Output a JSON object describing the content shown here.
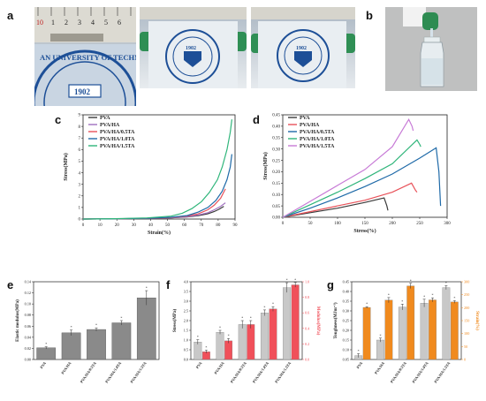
{
  "panels": {
    "a": "a",
    "b": "b",
    "c": "c",
    "d": "d",
    "e": "e",
    "f": "f",
    "g": "g"
  },
  "photos": {
    "a1": {
      "ruler_numbers": [
        "10",
        "1",
        "2",
        "3",
        "4",
        "5",
        "6"
      ],
      "seal_text": "AN UNIVERSITY OF TECHNO",
      "seal_year": "1902"
    },
    "a2": {
      "seal_text": "TIANJIN UNIVERSITY OF TECHNOLOGY",
      "seal_year": "1902"
    },
    "a3": {
      "seal_text": "TIANJIN UNIVERSITY OF TECHNOLOGY",
      "seal_year": "1902"
    },
    "b": {
      "description_icon": "hydrogel-bottle-icon"
    }
  },
  "chart_data": [
    {
      "id": "c",
      "type": "line",
      "xlabel": "Strain(%)",
      "ylabel": "Stress(MPa)",
      "xlim": [
        0,
        95
      ],
      "ylim": [
        0,
        9
      ],
      "xticks": [
        "0",
        "10",
        "20",
        "30",
        "40",
        "50",
        "60",
        "70",
        "80",
        "90"
      ],
      "yticks": [
        "0",
        "1",
        "2",
        "3",
        "4",
        "5",
        "6",
        "7",
        "8",
        "9"
      ],
      "grid": false,
      "legend_position": "top-left",
      "series": [
        {
          "name": "PVA",
          "color": "#3a3a3a",
          "x": [
            0,
            20,
            40,
            55,
            65,
            72,
            78,
            82,
            85,
            88
          ],
          "y": [
            0,
            0.02,
            0.05,
            0.1,
            0.18,
            0.3,
            0.45,
            0.65,
            0.85,
            1.1
          ]
        },
        {
          "name": "PVA/HA",
          "color": "#a070c0",
          "x": [
            0,
            20,
            40,
            55,
            65,
            72,
            78,
            82,
            86,
            89
          ],
          "y": [
            0,
            0.02,
            0.05,
            0.1,
            0.2,
            0.35,
            0.55,
            0.8,
            1.1,
            1.4
          ]
        },
        {
          "name": "PVA/HA/0.5TA",
          "color": "#e8525a",
          "x": [
            0,
            20,
            40,
            55,
            65,
            72,
            78,
            82,
            86,
            89
          ],
          "y": [
            0,
            0.02,
            0.06,
            0.12,
            0.25,
            0.45,
            0.8,
            1.2,
            1.8,
            2.6
          ]
        },
        {
          "name": "PVA/HA/1.0TA",
          "color": "#1f6aa8",
          "x": [
            0,
            20,
            40,
            55,
            65,
            72,
            78,
            83,
            87,
            90,
            92,
            93
          ],
          "y": [
            0,
            0.02,
            0.06,
            0.15,
            0.3,
            0.6,
            1.0,
            1.6,
            2.4,
            3.4,
            4.5,
            5.6
          ]
        },
        {
          "name": "PVA/HA/1.5TA",
          "color": "#2fb57a",
          "x": [
            0,
            20,
            40,
            55,
            62,
            68,
            74,
            79,
            84,
            87,
            90,
            92,
            93
          ],
          "y": [
            0,
            0.03,
            0.1,
            0.25,
            0.5,
            0.9,
            1.5,
            2.3,
            3.4,
            4.5,
            6.0,
            7.5,
            8.6
          ]
        }
      ]
    },
    {
      "id": "d",
      "type": "line",
      "xlabel": "Stress(%)",
      "ylabel": "Stress(MPa)",
      "xlim": [
        0,
        300
      ],
      "ylim": [
        0,
        0.45
      ],
      "xticks": [
        "0",
        "50",
        "100",
        "150",
        "200",
        "250",
        "300"
      ],
      "yticks": [
        "0.00",
        "0.05",
        "0.10",
        "0.15",
        "0.20",
        "0.25",
        "0.30",
        "0.35",
        "0.40",
        "0.45"
      ],
      "grid": false,
      "legend_position": "top-left",
      "series": [
        {
          "name": "PVA",
          "color": "#3a3a3a",
          "x": [
            0,
            50,
            100,
            150,
            185,
            190,
            192
          ],
          "y": [
            0,
            0.02,
            0.04,
            0.065,
            0.085,
            0.05,
            0.03
          ]
        },
        {
          "name": "PVA/HA",
          "color": "#e8525a",
          "x": [
            0,
            50,
            100,
            150,
            200,
            235,
            242,
            245
          ],
          "y": [
            0,
            0.025,
            0.05,
            0.075,
            0.11,
            0.15,
            0.12,
            0.11
          ]
        },
        {
          "name": "PVA/HA/0.5TA",
          "color": "#1f6aa8",
          "x": [
            0,
            50,
            100,
            150,
            200,
            250,
            280,
            285,
            288
          ],
          "y": [
            0,
            0.04,
            0.085,
            0.135,
            0.19,
            0.26,
            0.305,
            0.2,
            0.05
          ]
        },
        {
          "name": "PVA/HA/1.0TA",
          "color": "#2fb57a",
          "x": [
            0,
            50,
            100,
            150,
            200,
            245,
            250,
            252
          ],
          "y": [
            0,
            0.055,
            0.11,
            0.17,
            0.235,
            0.34,
            0.32,
            0.31
          ]
        },
        {
          "name": "PVA/HA/1.5TA",
          "color": "#c77ad6",
          "x": [
            0,
            50,
            100,
            150,
            200,
            230,
            236,
            238
          ],
          "y": [
            0,
            0.07,
            0.14,
            0.21,
            0.31,
            0.43,
            0.4,
            0.38
          ]
        }
      ]
    },
    {
      "id": "e",
      "type": "bar",
      "ylabel": "Elastic modulus(MPa)",
      "categories": [
        "PVA",
        "PVA/HA",
        "PVA/HA/0.5TA",
        "PVA/HA/1.0TA",
        "PVA/HA/1.5TA"
      ],
      "values": [
        0.021,
        0.048,
        0.054,
        0.066,
        0.111
      ],
      "errors": [
        0.002,
        0.005,
        0.003,
        0.004,
        0.013
      ],
      "ylim": [
        0,
        0.14
      ],
      "yticks": [
        "0.00",
        "0.02",
        "0.04",
        "0.06",
        "0.08",
        "0.10",
        "0.12",
        "0.14"
      ],
      "color": "#8a8a8a"
    },
    {
      "id": "f",
      "type": "bar",
      "ylabel": "Stress(MPa)",
      "ylabel_right": "Modulus(MPa)",
      "categories": [
        "PVA",
        "PVA/HA",
        "PVA/HA/0.5TA",
        "PVA/HA/1.0TA",
        "PVA/HA/1.5TA"
      ],
      "ylim": [
        0,
        4.0
      ],
      "ylim_right": [
        0,
        1.0
      ],
      "yticks": [
        "0.0",
        "0.5",
        "1.0",
        "1.5",
        "2.0",
        "2.5",
        "3.0",
        "3.5",
        "4.0"
      ],
      "yticks_right": [
        "0.0",
        "0.2",
        "0.4",
        "0.6",
        "0.8",
        "1.0"
      ],
      "series": [
        {
          "axis": "left",
          "color": "#c8c8c8",
          "values": [
            0.9,
            1.4,
            1.8,
            2.4,
            3.7
          ],
          "errors": [
            0.12,
            0.1,
            0.2,
            0.15,
            0.25
          ]
        },
        {
          "axis": "right",
          "color": "#f0505a",
          "values": [
            0.1,
            0.24,
            0.45,
            0.65,
            0.96
          ],
          "errors": [
            0.02,
            0.03,
            0.05,
            0.03,
            0.03
          ]
        }
      ]
    },
    {
      "id": "g",
      "type": "bar",
      "ylabel": "Toughness(MJm⁻³)",
      "ylabel_right": "Strain(%)",
      "categories": [
        "PVA",
        "PVA/HA",
        "PVA/HA/0.5TA",
        "PVA/HA/1.0TA",
        "PVA/HA/1.5TA"
      ],
      "ylim": [
        0.05,
        0.45
      ],
      "ylim_right": [
        0,
        300
      ],
      "yticks": [
        "0.05",
        "0.10",
        "0.15",
        "0.20",
        "0.25",
        "0.30",
        "0.35",
        "0.40",
        "0.45"
      ],
      "yticks_right": [
        "0",
        "50",
        "100",
        "150",
        "200",
        "250",
        "300"
      ],
      "series": [
        {
          "axis": "left",
          "color": "#c8c8c8",
          "values": [
            0.07,
            0.15,
            0.32,
            0.34,
            0.42
          ],
          "errors": [
            0.01,
            0.01,
            0.015,
            0.02,
            0.01
          ]
        },
        {
          "axis": "right",
          "color": "#f08a1e",
          "values": [
            201,
            229,
            284,
            230,
            222
          ],
          "errors": [
            3,
            10,
            10,
            8,
            5
          ]
        }
      ]
    }
  ]
}
